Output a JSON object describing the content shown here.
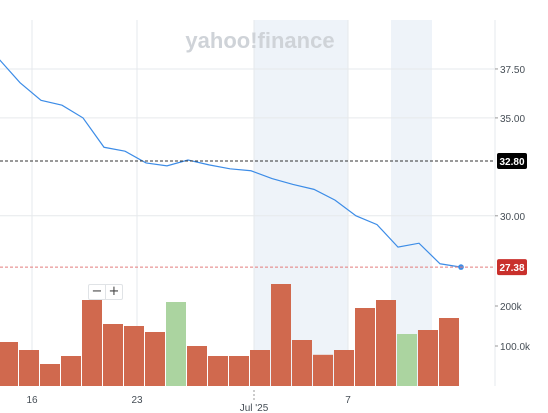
{
  "watermark": "yahoo!finance",
  "zoom": {
    "minus_label": "−",
    "plus_label": "+"
  },
  "colors": {
    "line": "#3c8ce7",
    "volume_down": "#d0694e",
    "volume_up": "#abd4a0",
    "last_price_badge": "#c9302c",
    "ref_badge": "#000000",
    "shade": "#eef3f9"
  },
  "chart_data": {
    "type": "line",
    "x_tick_labels": [
      "16",
      "23",
      "Jul '25",
      "7"
    ],
    "y_tick_labels": [
      "37.50",
      "35.00",
      "30.00",
      "100.0k",
      "200k"
    ],
    "ylim": [
      25.7,
      40.0
    ],
    "price_series": {
      "values": [
        38.0,
        36.8,
        35.9,
        35.65,
        35.0,
        33.5,
        33.3,
        32.7,
        32.55,
        32.85,
        32.6,
        32.4,
        32.3,
        31.9,
        31.6,
        31.35,
        30.8,
        30.0,
        29.55,
        28.4,
        28.6,
        27.55,
        27.38
      ]
    },
    "volume_series": {
      "values": [
        110,
        90,
        55,
        75,
        215,
        155,
        150,
        135,
        210,
        100,
        75,
        75,
        90,
        255,
        115,
        78,
        90,
        195,
        215,
        130,
        140,
        170
      ],
      "direction": [
        "down",
        "down",
        "down",
        "down",
        "down",
        "down",
        "down",
        "down",
        "up",
        "down",
        "down",
        "down",
        "down",
        "down",
        "down",
        "down",
        "down",
        "down",
        "down",
        "up",
        "down",
        "down"
      ],
      "ylim": [
        0,
        400
      ]
    },
    "reference_lines": [
      {
        "value": 32.8,
        "label": "32.80",
        "style": "black-dashed"
      },
      {
        "value": 27.38,
        "label": "27.38",
        "style": "red-dashed"
      }
    ]
  }
}
